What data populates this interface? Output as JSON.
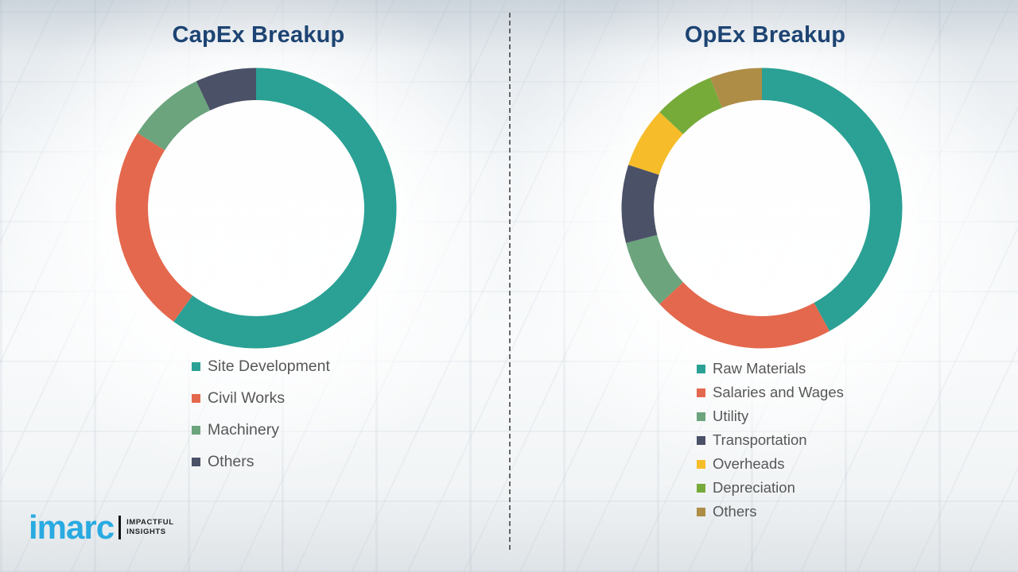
{
  "logo": {
    "brand": "imarc",
    "tagline_line1": "IMPACTFUL",
    "tagline_line2": "INSIGHTS",
    "brand_color": "#29aae1"
  },
  "chart_data": [
    {
      "type": "pie",
      "donut": true,
      "title": "CapEx Breakup",
      "legend_position": "below-left",
      "segments": [
        {
          "label": "Site Development",
          "value": 60,
          "color": "#2aa194"
        },
        {
          "label": "Civil Works",
          "value": 24,
          "color": "#e4684d"
        },
        {
          "label": "Machinery",
          "value": 9,
          "color": "#6ba47d"
        },
        {
          "label": "Others",
          "value": 7,
          "color": "#4b5167"
        }
      ]
    },
    {
      "type": "pie",
      "donut": true,
      "title": "OpEx Breakup",
      "legend_position": "below-left",
      "segments": [
        {
          "label": "Raw Materials",
          "value": 42,
          "color": "#2aa194"
        },
        {
          "label": "Salaries and Wages",
          "value": 21,
          "color": "#e4684d"
        },
        {
          "label": "Utility",
          "value": 8,
          "color": "#6ba47d"
        },
        {
          "label": "Transportation",
          "value": 9,
          "color": "#4b5167"
        },
        {
          "label": "Overheads",
          "value": 7,
          "color": "#f6bc29"
        },
        {
          "label": "Depreciation",
          "value": 7,
          "color": "#76ab3a"
        },
        {
          "label": "Others",
          "value": 6,
          "color": "#ae8d47"
        }
      ]
    }
  ]
}
